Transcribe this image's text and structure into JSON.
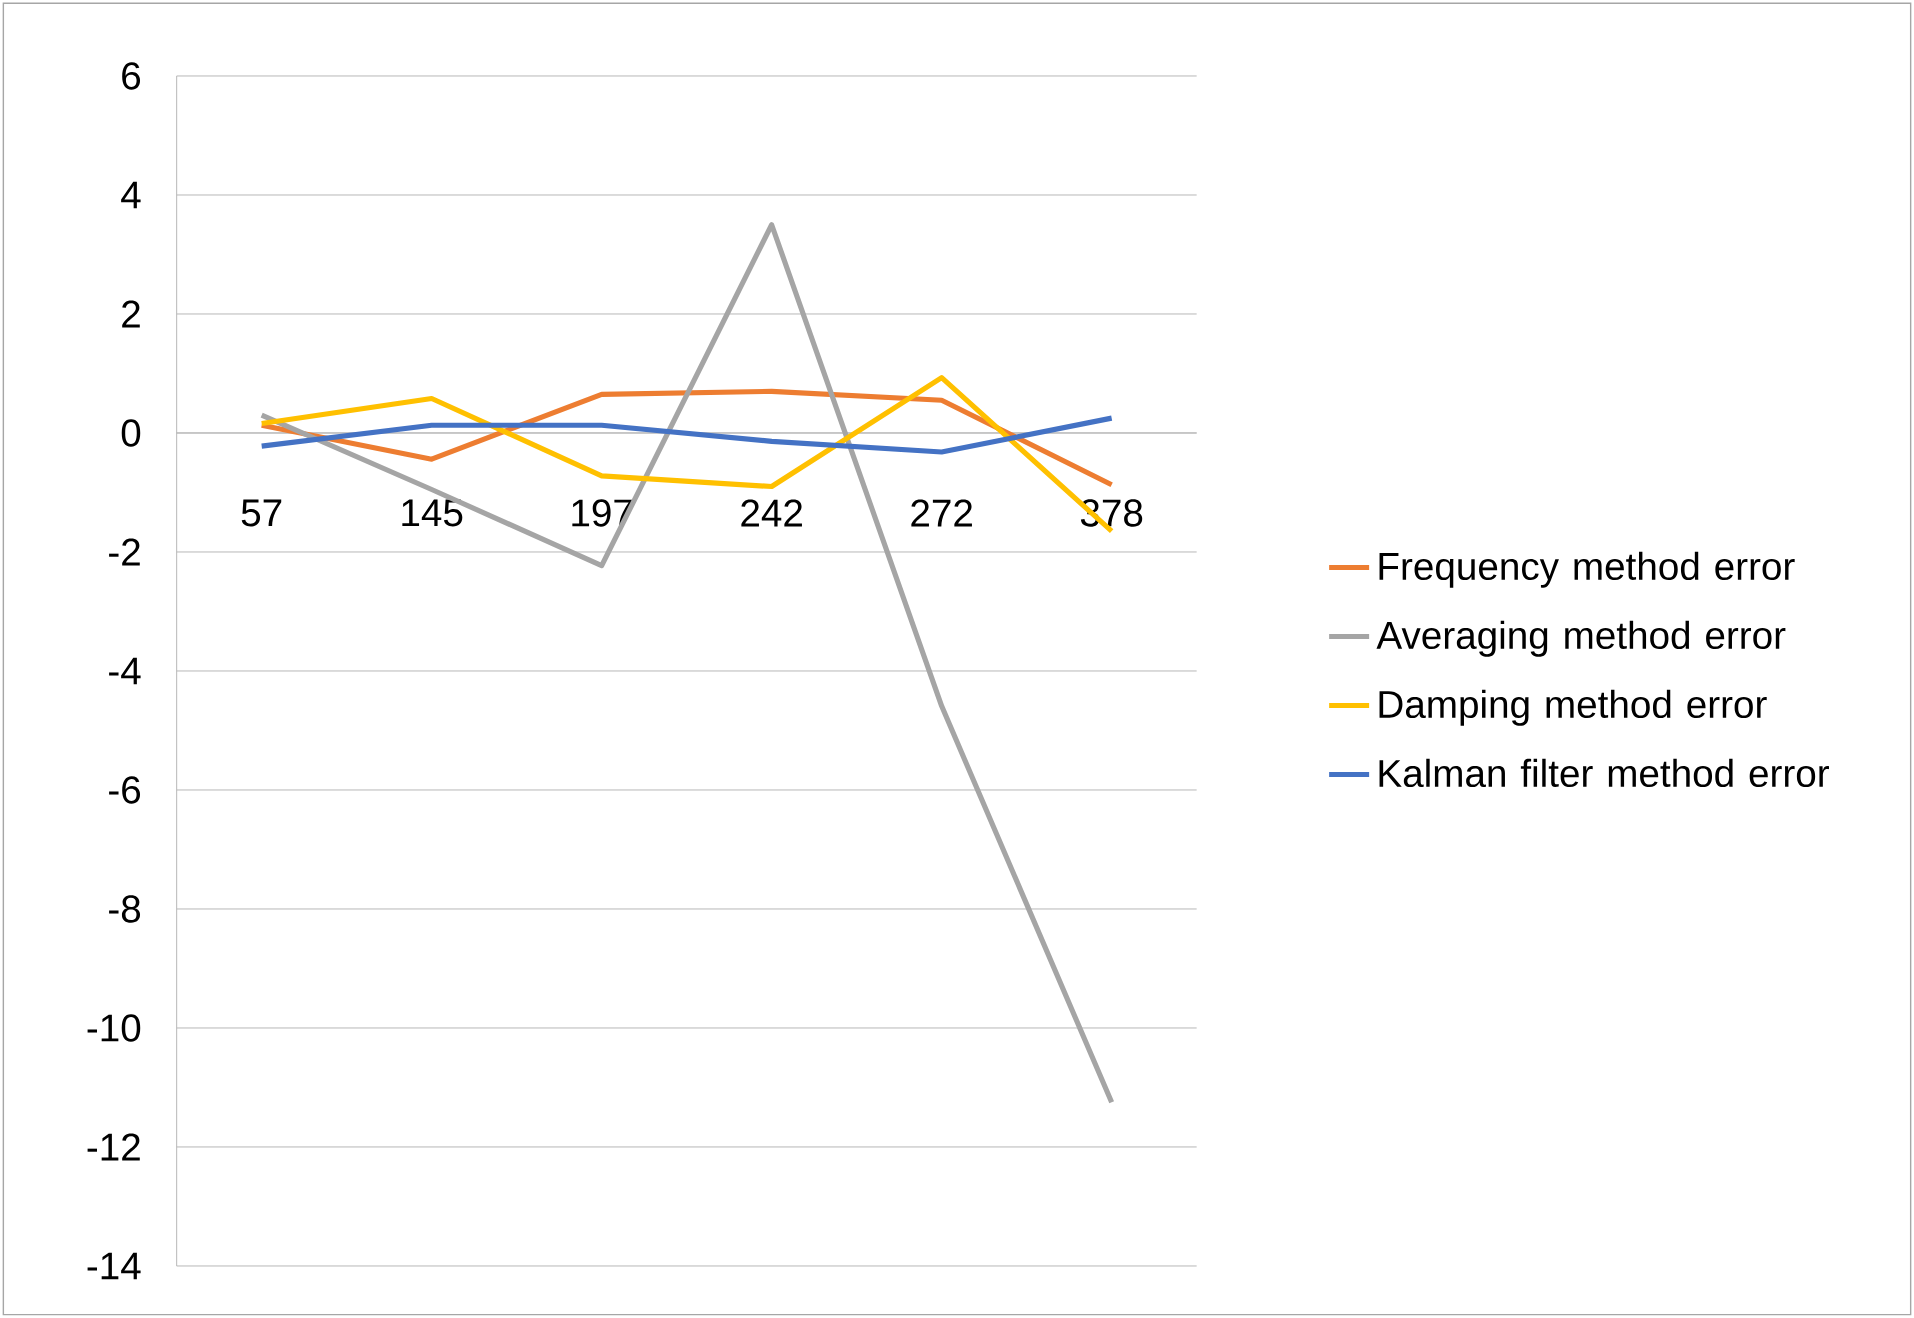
{
  "chart_data": {
    "type": "line",
    "categories": [
      "57",
      "145",
      "197",
      "242",
      "272",
      "378"
    ],
    "series": [
      {
        "name": "Frequency method error",
        "color": "#ed7d31",
        "values": [
          0.13,
          -0.44,
          0.65,
          0.7,
          0.55,
          -0.87
        ]
      },
      {
        "name": "Averaging method error",
        "color": "#a5a5a5",
        "values": [
          0.3,
          -0.95,
          -2.23,
          3.5,
          -4.59,
          -11.25
        ]
      },
      {
        "name": "Damping method error",
        "color": "#ffc000",
        "values": [
          0.16,
          0.58,
          -0.72,
          -0.9,
          0.93,
          -1.65
        ]
      },
      {
        "name": "Kalman filter method error",
        "color": "#4472c4",
        "values": [
          -0.22,
          0.13,
          0.13,
          -0.14,
          -0.32,
          0.25
        ]
      }
    ],
    "ylim": [
      -14,
      6
    ],
    "yticks": [
      -14,
      -12,
      -10,
      -8,
      -6,
      -4,
      -2,
      0,
      2,
      4,
      6
    ],
    "grid": "y",
    "legend": "right",
    "marker": "none",
    "line_style": "solid"
  }
}
